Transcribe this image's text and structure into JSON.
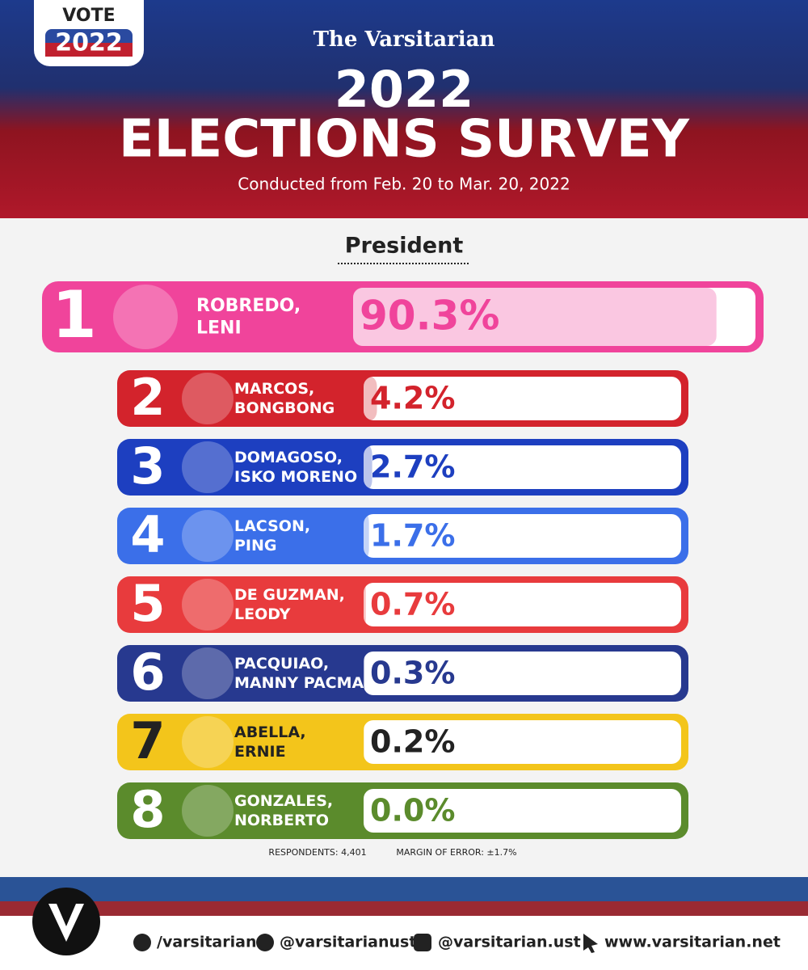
{
  "header": {
    "badge_top": "VOTE",
    "badge_year": "2022",
    "publication": "The Varsitarian",
    "title_year": "2022",
    "title": "ELECTIONS SURVEY",
    "subtitle": "Conducted from Feb. 20 to Mar. 20, 2022"
  },
  "chart_data": {
    "type": "bar",
    "orientation": "horizontal",
    "title": "President",
    "ranks": [
      1,
      2,
      3,
      4,
      5,
      6,
      7,
      8
    ],
    "categories": [
      [
        "ROBREDO,",
        "LENI"
      ],
      [
        "MARCOS,",
        "BONGBONG"
      ],
      [
        "DOMAGOSO,",
        "ISKO MORENO"
      ],
      [
        "LACSON,",
        "PING"
      ],
      [
        "DE GUZMAN,",
        "LEODY"
      ],
      [
        "PACQUIAO,",
        "MANNY PACMAN"
      ],
      [
        "ABELLA,",
        "ERNIE"
      ],
      [
        "GONZALES,",
        "NORBERTO"
      ]
    ],
    "values": [
      90.3,
      4.2,
      2.7,
      1.7,
      0.7,
      0.3,
      0.2,
      0.0
    ],
    "value_labels": [
      "90.3%",
      "4.2%",
      "2.7%",
      "1.7%",
      "0.7%",
      "0.3%",
      "0.2%",
      "0.0%"
    ],
    "colors": [
      "#f0449b",
      "#d3232c",
      "#1d3fc0",
      "#3b6fe9",
      "#e83b3d",
      "#27398f",
      "#f3c51b",
      "#5b8b2c"
    ],
    "label_colors": [
      "#f0449b",
      "#d3232c",
      "#1d3fc0",
      "#3b6fe9",
      "#e83b3d",
      "#27398f",
      "#222222",
      "#5b8b2c"
    ],
    "xlim": [
      0,
      100
    ]
  },
  "notes": {
    "respondents": "RESPONDENTS: 4,401",
    "margin": "MARGIN OF ERROR: ±1.7%"
  },
  "footer": {
    "facebook": "/varsitarian",
    "twitter": "@varsitarianust",
    "instagram": "@varsitarian.ust",
    "website": "www.varsitarian.net"
  }
}
